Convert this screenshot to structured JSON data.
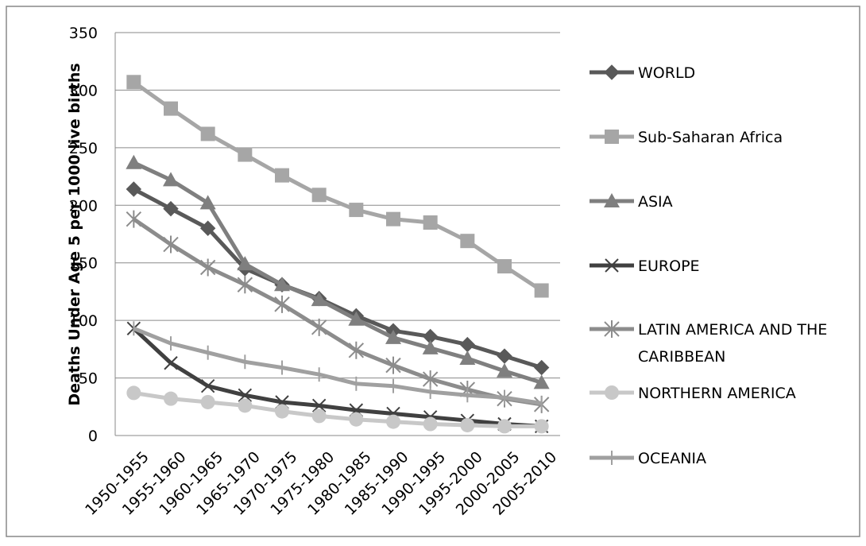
{
  "chart_data": {
    "type": "line",
    "title": "",
    "xlabel": "",
    "ylabel": "Deaths Under Age 5 per 1000 live births",
    "ylim": [
      0,
      350
    ],
    "yticks": [
      0,
      50,
      100,
      150,
      200,
      250,
      300,
      350
    ],
    "grid": true,
    "legend_position": "right",
    "categories": [
      "1950-1955",
      "1955-1960",
      "1960-1965",
      "1965-1970",
      "1970-1975",
      "1975-1980",
      "1980-1985",
      "1985-1990",
      "1990-1995",
      "1995-2000",
      "2000-2005",
      "2005-2010"
    ],
    "series": [
      {
        "name": "WORLD",
        "marker": "diamond",
        "color": "#595959",
        "values": [
          214,
          197,
          180,
          145,
          131,
          119,
          104,
          91,
          86,
          79,
          69,
          59
        ]
      },
      {
        "name": "Sub-Saharan Africa",
        "marker": "square",
        "color": "#a6a6a6",
        "values": [
          307,
          284,
          262,
          244,
          226,
          209,
          196,
          188,
          185,
          169,
          147,
          126
        ]
      },
      {
        "name": "ASIA",
        "marker": "triangle",
        "color": "#7f7f7f",
        "values": [
          237,
          222,
          202,
          149,
          131,
          118,
          101,
          85,
          76,
          67,
          56,
          46
        ]
      },
      {
        "name": "EUROPE",
        "marker": "x",
        "color": "#404040",
        "values": [
          93,
          63,
          43,
          35,
          29,
          26,
          22,
          19,
          16,
          13,
          10,
          8
        ]
      },
      {
        "name": "LATIN AMERICA AND THE CARIBBEAN",
        "marker": "star",
        "color": "#8c8c8c",
        "values": [
          188,
          166,
          146,
          131,
          114,
          94,
          74,
          61,
          49,
          40,
          32,
          27
        ]
      },
      {
        "name": "NORTHERN AMERICA",
        "marker": "circle",
        "color": "#c8c8c8",
        "values": [
          37,
          32,
          29,
          26,
          21,
          17,
          14,
          12,
          10,
          9,
          8,
          8
        ]
      },
      {
        "name": "OCEANIA",
        "marker": "plus",
        "color": "#a0a0a0",
        "values": [
          93,
          80,
          72,
          64,
          59,
          53,
          45,
          43,
          38,
          35,
          33,
          28
        ]
      }
    ]
  }
}
